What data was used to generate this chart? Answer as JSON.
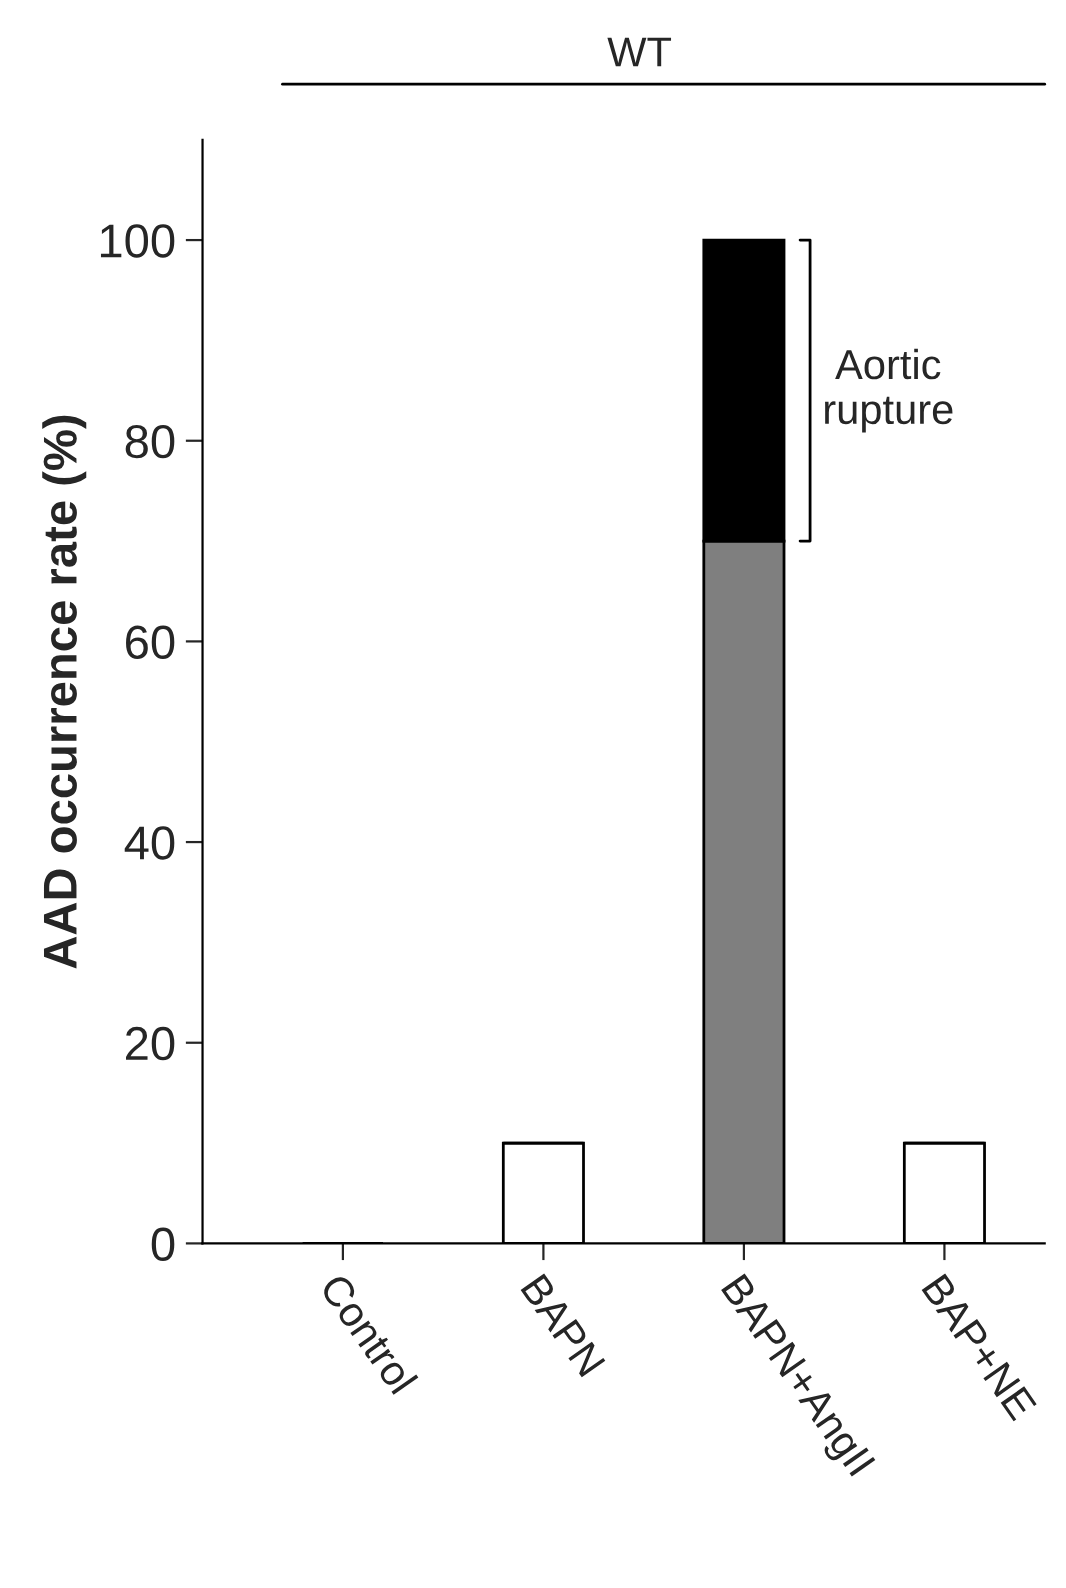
{
  "chart_data": {
    "type": "bar",
    "stacked": true,
    "ylabel": "AAD occurrence rate (%)",
    "categories": [
      "Control",
      "BAPN",
      "BAPN+AngII",
      "BAP+NE"
    ],
    "series": [
      {
        "colors": [
          "#ffffff",
          "#ffffff",
          "#7f7f7f",
          "#ffffff"
        ],
        "values": [
          0,
          10,
          70,
          10
        ]
      },
      {
        "color": "#000000",
        "values": [
          0,
          0,
          30,
          0
        ]
      }
    ],
    "ylim": [
      0,
      110
    ],
    "yticks": [
      0,
      20,
      40,
      60,
      80,
      100
    ],
    "grid": false,
    "legend": false,
    "annotations": [
      "WT",
      "Aortic\nrupture"
    ]
  }
}
